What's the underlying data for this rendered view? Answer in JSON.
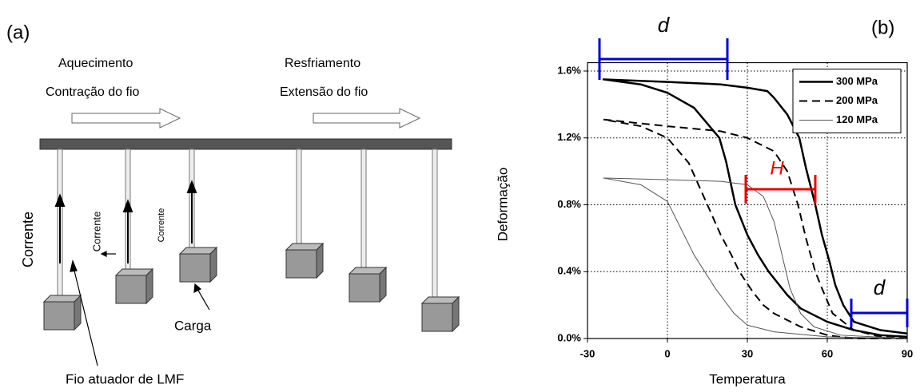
{
  "diagram": {
    "panel_label": "(a)",
    "labels": [
      "Aquecimento",
      "Contração do fio",
      "Resfriamento",
      "Extensão do fio",
      "Corrente",
      "Corrente",
      "Corrente",
      "Carga",
      "Fio atuador de LMF"
    ]
  },
  "chart_data": {
    "type": "line",
    "panel_label": "(b)",
    "x_label": "Temperatura",
    "y_label": "Deformação",
    "xlim": [
      -30,
      90
    ],
    "xticks": [
      -30,
      0,
      30,
      60,
      90
    ],
    "ylim": [
      0,
      1.65
    ],
    "yticks": [
      {
        "value": 0,
        "label": "0.0%"
      },
      {
        "value": 0.4,
        "label": "0.4%"
      },
      {
        "value": 0.8,
        "label": "0.8%"
      },
      {
        "value": 1.2,
        "label": "1.2%"
      },
      {
        "value": 1.6,
        "label": "1.6%"
      }
    ],
    "grid": true,
    "legend": "upper right",
    "annotations": [
      "d",
      "H",
      "d"
    ],
    "series": [
      {
        "name": "300 MPa",
        "color": "#000000",
        "style": "solid",
        "line_width": 2.5,
        "x": [
          90,
          80,
          70,
          66,
          63,
          61,
          58,
          55.5,
          52,
          49.5,
          45,
          40,
          37.5,
          30,
          20,
          0,
          -24,
          -10,
          0,
          10,
          19.5,
          22,
          25.5,
          30,
          34,
          38,
          45,
          50,
          60,
          70,
          80,
          90
        ],
        "values": [
          0.03,
          0.05,
          0.1,
          0.2,
          0.32,
          0.45,
          0.62,
          0.8,
          1.02,
          1.2,
          1.34,
          1.44,
          1.48,
          1.5,
          1.52,
          1.535,
          1.55,
          1.52,
          1.47,
          1.38,
          1.2,
          1.06,
          0.8,
          0.62,
          0.5,
          0.4,
          0.26,
          0.18,
          0.1,
          0.05,
          0.02,
          0.01
        ]
      },
      {
        "name": "200 MPa",
        "color": "#000000",
        "style": "dashed",
        "line_width": 2,
        "x": [
          90,
          80,
          70,
          62,
          58,
          55.5,
          52,
          49,
          45,
          40,
          30,
          20,
          0,
          -24,
          -10,
          0,
          8,
          15,
          20,
          24,
          27,
          32,
          36,
          40,
          50,
          60,
          70,
          90
        ],
        "values": [
          0,
          0.01,
          0.05,
          0.15,
          0.3,
          0.4,
          0.6,
          0.8,
          1.0,
          1.12,
          1.2,
          1.24,
          1.27,
          1.31,
          1.27,
          1.2,
          1.05,
          0.8,
          0.62,
          0.5,
          0.4,
          0.28,
          0.2,
          0.15,
          0.07,
          0.02,
          0,
          0
        ]
      },
      {
        "name": "120 MPa",
        "color": "#555555",
        "style": "solid",
        "line_width": 1,
        "x": [
          90,
          65,
          55,
          50,
          46,
          43,
          40,
          36,
          30,
          20,
          0,
          -24,
          -10,
          0,
          10,
          18,
          25,
          30,
          40,
          60,
          90
        ],
        "values": [
          0,
          0.02,
          0.07,
          0.15,
          0.3,
          0.5,
          0.7,
          0.85,
          0.92,
          0.94,
          0.95,
          0.96,
          0.92,
          0.82,
          0.5,
          0.3,
          0.15,
          0.08,
          0.04,
          0.01,
          0
        ]
      }
    ]
  }
}
